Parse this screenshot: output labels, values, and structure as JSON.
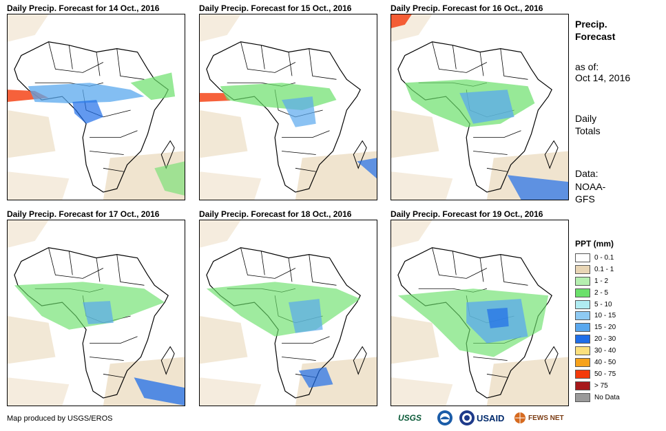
{
  "panels": [
    {
      "title": "Daily Precip. Forecast for 14 Oct., 2016"
    },
    {
      "title": "Daily Precip. Forecast for 15 Oct., 2016"
    },
    {
      "title": "Daily Precip. Forecast for 16 Oct., 2016"
    },
    {
      "title": "Daily Precip. Forecast for 17 Oct., 2016"
    },
    {
      "title": "Daily Precip. Forecast for 18 Oct., 2016"
    },
    {
      "title": "Daily Precip. Forecast for 19 Oct., 2016"
    }
  ],
  "sidebar": {
    "heading_line1": "Precip.",
    "heading_line2": "Forecast",
    "asof_line1": "as of:",
    "asof_line2": "Oct 14, 2016",
    "totals_line1": "Daily",
    "totals_line2": "Totals",
    "data_line1": "Data:",
    "data_line2": "NOAA-",
    "data_line3": "GFS"
  },
  "legend": {
    "title": "PPT (mm)",
    "items": [
      {
        "label": "0 - 0.1",
        "color": "#ffffff"
      },
      {
        "label": "0.1 - 1",
        "color": "#e8d5b5"
      },
      {
        "label": "1 - 2",
        "color": "#b5efb0"
      },
      {
        "label": "2 - 5",
        "color": "#6be06b"
      },
      {
        "label": "5 - 10",
        "color": "#b0ecf2"
      },
      {
        "label": "10 - 15",
        "color": "#8ecaf3"
      },
      {
        "label": "15 - 20",
        "color": "#5aa8ee"
      },
      {
        "label": "20 - 30",
        "color": "#1f6ee8"
      },
      {
        "label": "30 - 40",
        "color": "#fce07c"
      },
      {
        "label": "40 - 50",
        "color": "#f7a21a"
      },
      {
        "label": "50 - 75",
        "color": "#f43a0a"
      },
      {
        "label": "> 75",
        "color": "#a6191b"
      },
      {
        "label": "No Data",
        "color": "#9a9a9a"
      }
    ]
  },
  "footer": {
    "credit": "Map produced by USGS/EROS"
  },
  "logos": {
    "usgs": "USGS",
    "usaid": "USAID",
    "fews": "FEWS NET"
  }
}
